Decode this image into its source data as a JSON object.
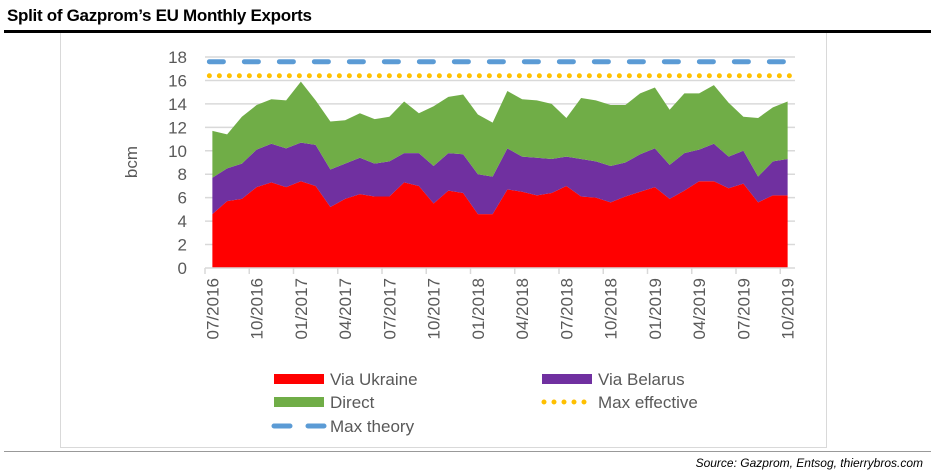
{
  "chart_data": {
    "type": "area",
    "title": "Split of Gazprom’s EU Monthly Exports",
    "ylabel": "bcm",
    "xlabel": "",
    "ylim": [
      0,
      18
    ],
    "yticks": [
      0,
      2,
      4,
      6,
      8,
      10,
      12,
      14,
      16,
      18
    ],
    "grid": true,
    "legend_position": "bottom",
    "x": [
      "07/2016",
      "08/2016",
      "09/2016",
      "10/2016",
      "11/2016",
      "12/2016",
      "01/2017",
      "02/2017",
      "03/2017",
      "04/2017",
      "05/2017",
      "06/2017",
      "07/2017",
      "08/2017",
      "09/2017",
      "10/2017",
      "11/2017",
      "12/2017",
      "01/2018",
      "02/2018",
      "03/2018",
      "04/2018",
      "05/2018",
      "06/2018",
      "07/2018",
      "08/2018",
      "09/2018",
      "10/2018",
      "11/2018",
      "12/2018",
      "01/2019",
      "02/2019",
      "03/2019",
      "04/2019",
      "05/2019",
      "06/2019",
      "07/2019",
      "08/2019",
      "09/2019",
      "10/2019"
    ],
    "xtick_labels": [
      "07/2016",
      "10/2016",
      "01/2017",
      "04/2017",
      "07/2017",
      "10/2017",
      "01/2018",
      "04/2018",
      "07/2018",
      "10/2018",
      "01/2019",
      "04/2019",
      "07/2019",
      "10/2019"
    ],
    "series": [
      {
        "name": "Via Ukraine",
        "stacked": true,
        "color": "#ff0000",
        "values": [
          4.6,
          5.7,
          5.9,
          6.9,
          7.3,
          6.9,
          7.4,
          7.0,
          5.2,
          5.9,
          6.3,
          6.1,
          6.1,
          7.3,
          7.0,
          5.5,
          6.6,
          6.4,
          4.6,
          4.6,
          6.7,
          6.5,
          6.2,
          6.4,
          7.0,
          6.1,
          6.0,
          5.6,
          6.1,
          6.5,
          6.9,
          5.9,
          6.6,
          7.4,
          7.4,
          6.8,
          7.2,
          5.6,
          6.2,
          6.2
        ]
      },
      {
        "name": "Via Belarus",
        "stacked": true,
        "color": "#7030a0",
        "values": [
          3.1,
          2.8,
          3.0,
          3.2,
          3.3,
          3.3,
          3.3,
          3.5,
          3.2,
          3.0,
          3.1,
          2.8,
          3.0,
          2.5,
          2.8,
          3.2,
          3.2,
          3.3,
          3.4,
          3.2,
          3.5,
          3.0,
          3.2,
          2.9,
          2.5,
          3.2,
          3.1,
          3.1,
          2.9,
          3.2,
          3.3,
          2.9,
          3.2,
          2.7,
          3.2,
          2.7,
          2.8,
          2.2,
          2.9,
          3.1
        ]
      },
      {
        "name": "Direct",
        "stacked": true,
        "color": "#70ad47",
        "values": [
          4.0,
          2.9,
          4.0,
          3.8,
          3.8,
          4.1,
          5.2,
          3.8,
          4.1,
          3.7,
          3.8,
          3.8,
          3.8,
          4.4,
          3.4,
          5.1,
          4.8,
          5.1,
          5.1,
          4.6,
          4.9,
          4.9,
          4.9,
          4.7,
          3.3,
          5.2,
          5.2,
          5.2,
          4.9,
          5.2,
          5.2,
          4.7,
          5.1,
          4.8,
          5.0,
          4.6,
          2.9,
          5.0,
          4.6,
          4.9
        ]
      },
      {
        "name": "Max effective",
        "type": "line",
        "style": "dotted",
        "color": "#ffc000",
        "value": 16.4
      },
      {
        "name": "Max theory",
        "type": "line",
        "style": "dashed",
        "color": "#5b9bd5",
        "value": 17.6
      }
    ],
    "source": "Source: Gazprom, Entsog, thierrybros.com"
  }
}
